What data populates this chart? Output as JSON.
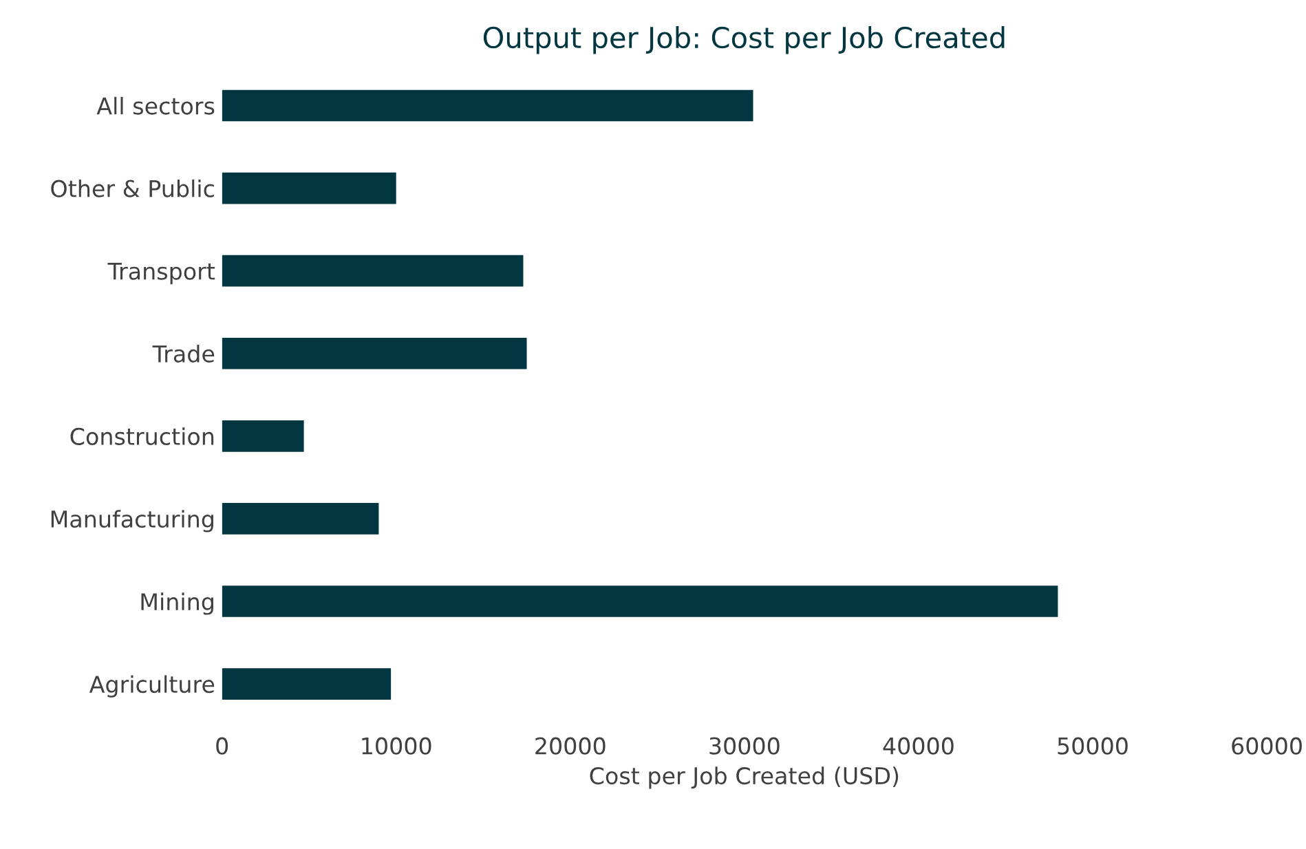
{
  "chart_data": {
    "type": "bar",
    "orientation": "horizontal",
    "title": "Output per Job: Cost per Job Created",
    "xlabel": "Cost per Job Created (USD)",
    "categories": [
      "All sectors",
      "Other & Public",
      "Transport",
      "Trade",
      "Construction",
      "Manufacturing",
      "Mining",
      "Agriculture"
    ],
    "values": [
      30500,
      10000,
      17300,
      17500,
      4700,
      9000,
      48000,
      9700
    ],
    "color": "#023641",
    "xlim": [
      0,
      60000
    ],
    "xticks": [
      0,
      10000,
      20000,
      30000,
      40000,
      50000,
      60000
    ],
    "grid": false,
    "legend": false
  }
}
